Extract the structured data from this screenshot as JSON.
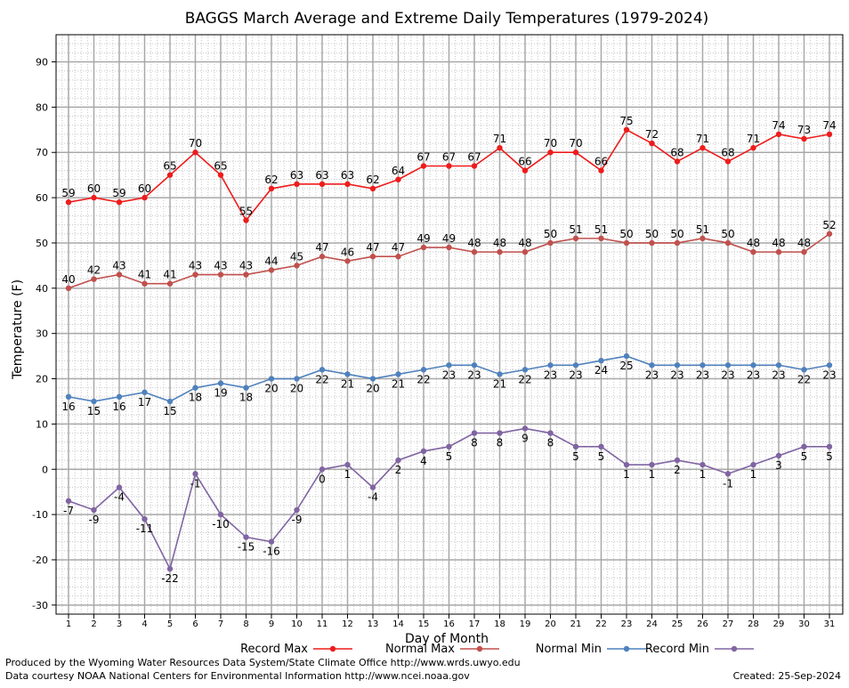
{
  "chart_data": {
    "type": "line",
    "title": "BAGGS March Average and Extreme Daily Temperatures (1979-2024)",
    "xlabel": "Day of Month",
    "ylabel": "Temperature (F)",
    "ylim": [
      -32,
      96
    ],
    "yticks": [
      -30,
      -20,
      -10,
      0,
      10,
      20,
      30,
      40,
      50,
      60,
      70,
      80,
      90
    ],
    "x": [
      1,
      2,
      3,
      4,
      5,
      6,
      7,
      8,
      9,
      10,
      11,
      12,
      13,
      14,
      15,
      16,
      17,
      18,
      19,
      20,
      21,
      22,
      23,
      24,
      25,
      26,
      27,
      28,
      29,
      30,
      31
    ],
    "grid": true,
    "legend_position": "bottom",
    "series": [
      {
        "name": "Record Max",
        "color": "#ee1c1c",
        "label_side": "above",
        "values": [
          59,
          60,
          59,
          60,
          65,
          70,
          65,
          55,
          62,
          63,
          63,
          63,
          62,
          64,
          67,
          67,
          67,
          71,
          66,
          70,
          70,
          66,
          75,
          72,
          68,
          71,
          68,
          71,
          74,
          73,
          74
        ]
      },
      {
        "name": "Normal Max",
        "color": "#c0504d",
        "label_side": "above",
        "values": [
          40,
          42,
          43,
          41,
          41,
          43,
          43,
          43,
          44,
          45,
          47,
          46,
          47,
          47,
          49,
          49,
          48,
          48,
          48,
          50,
          51,
          51,
          50,
          50,
          50,
          51,
          50,
          48,
          48,
          48,
          52
        ]
      },
      {
        "name": "Normal Min",
        "color": "#4f81bd",
        "label_side": "below",
        "values": [
          16,
          15,
          16,
          17,
          15,
          18,
          19,
          18,
          20,
          20,
          22,
          21,
          20,
          21,
          22,
          23,
          23,
          21,
          22,
          23,
          23,
          24,
          25,
          23,
          23,
          23,
          23,
          23,
          23,
          22,
          23
        ]
      },
      {
        "name": "Record Min",
        "color": "#8064a2",
        "label_side": "below",
        "values": [
          -7,
          -9,
          -4,
          -11,
          -22,
          -1,
          -10,
          -15,
          -16,
          -9,
          0,
          1,
          -4,
          2,
          4,
          5,
          8,
          8,
          9,
          8,
          5,
          5,
          1,
          1,
          2,
          1,
          -1,
          1,
          3,
          5,
          5
        ]
      }
    ]
  },
  "footer": {
    "produced_by": "Produced by the Wyoming Water Resources Data System/State Climate Office http://www.wrds.uwyo.edu",
    "courtesy": "Data courtesy NOAA National Centers for Environmental Information http://www.ncei.noaa.gov",
    "created": "Created:  25-Sep-2024"
  }
}
